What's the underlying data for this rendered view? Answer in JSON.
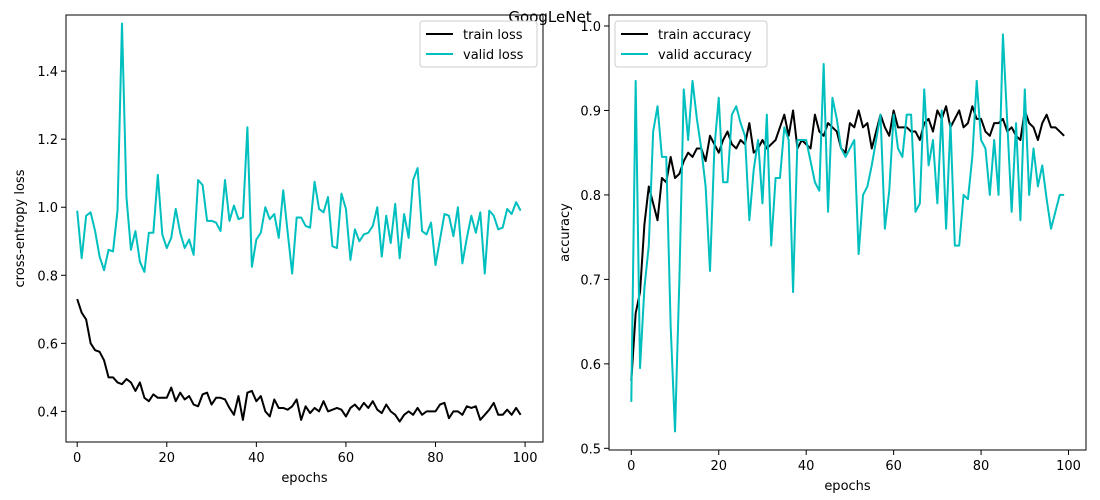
{
  "figure": {
    "title": "GoogLeNet"
  },
  "colors": {
    "train": "#000000",
    "valid": "#00bfbf"
  },
  "chart_data": [
    {
      "type": "line",
      "xlabel": "epochs",
      "ylabel": "cross-entropy loss",
      "xlim": [
        -2.5,
        104
      ],
      "ylim": [
        0.31,
        1.565
      ],
      "xticks": [
        0,
        20,
        40,
        60,
        80,
        100
      ],
      "yticks": [
        0.4,
        0.6,
        0.8,
        1.0,
        1.2,
        1.4
      ],
      "legend": "top-right",
      "series": [
        {
          "name": "train loss",
          "color": "#000000",
          "x": [
            0,
            1,
            2,
            3,
            4,
            5,
            6,
            7,
            8,
            9,
            10,
            11,
            12,
            13,
            14,
            15,
            16,
            17,
            18,
            19,
            20,
            21,
            22,
            23,
            24,
            25,
            26,
            27,
            28,
            29,
            30,
            31,
            32,
            33,
            34,
            35,
            36,
            37,
            38,
            39,
            40,
            41,
            42,
            43,
            44,
            45,
            46,
            47,
            48,
            49,
            50,
            51,
            52,
            53,
            54,
            55,
            56,
            57,
            58,
            59,
            60,
            61,
            62,
            63,
            64,
            65,
            66,
            67,
            68,
            69,
            70,
            71,
            72,
            73,
            74,
            75,
            76,
            77,
            78,
            79,
            80,
            81,
            82,
            83,
            84,
            85,
            86,
            87,
            88,
            89,
            90,
            91,
            92,
            93,
            94,
            95,
            96,
            97,
            98,
            99
          ],
          "values": [
            0.73,
            0.69,
            0.67,
            0.6,
            0.58,
            0.575,
            0.55,
            0.5,
            0.5,
            0.485,
            0.48,
            0.495,
            0.485,
            0.46,
            0.485,
            0.44,
            0.43,
            0.45,
            0.44,
            0.44,
            0.44,
            0.47,
            0.43,
            0.455,
            0.435,
            0.445,
            0.42,
            0.415,
            0.45,
            0.455,
            0.42,
            0.44,
            0.44,
            0.435,
            0.41,
            0.39,
            0.445,
            0.375,
            0.455,
            0.46,
            0.43,
            0.445,
            0.4,
            0.385,
            0.435,
            0.41,
            0.41,
            0.405,
            0.415,
            0.435,
            0.375,
            0.415,
            0.395,
            0.41,
            0.4,
            0.43,
            0.4,
            0.405,
            0.41,
            0.405,
            0.385,
            0.41,
            0.42,
            0.405,
            0.425,
            0.41,
            0.43,
            0.405,
            0.395,
            0.42,
            0.4,
            0.39,
            0.37,
            0.39,
            0.4,
            0.39,
            0.41,
            0.39,
            0.4,
            0.4,
            0.4,
            0.42,
            0.425,
            0.38,
            0.4,
            0.4,
            0.39,
            0.415,
            0.41,
            0.415,
            0.375,
            0.39,
            0.405,
            0.425,
            0.39,
            0.39,
            0.405,
            0.39,
            0.41,
            0.39
          ]
        },
        {
          "name": "valid loss",
          "color": "#00bfbf",
          "x": [
            0,
            1,
            2,
            3,
            4,
            5,
            6,
            7,
            8,
            9,
            10,
            11,
            12,
            13,
            14,
            15,
            16,
            17,
            18,
            19,
            20,
            21,
            22,
            23,
            24,
            25,
            26,
            27,
            28,
            29,
            30,
            31,
            32,
            33,
            34,
            35,
            36,
            37,
            38,
            39,
            40,
            41,
            42,
            43,
            44,
            45,
            46,
            47,
            48,
            49,
            50,
            51,
            52,
            53,
            54,
            55,
            56,
            57,
            58,
            59,
            60,
            61,
            62,
            63,
            64,
            65,
            66,
            67,
            68,
            69,
            70,
            71,
            72,
            73,
            74,
            75,
            76,
            77,
            78,
            79,
            80,
            81,
            82,
            83,
            84,
            85,
            86,
            87,
            88,
            89,
            90,
            91,
            92,
            93,
            94,
            95,
            96,
            97,
            98,
            99
          ],
          "values": [
            0.99,
            0.85,
            0.975,
            0.985,
            0.93,
            0.855,
            0.815,
            0.875,
            0.87,
            0.99,
            1.54,
            1.03,
            0.875,
            0.93,
            0.84,
            0.81,
            0.925,
            0.925,
            1.095,
            0.92,
            0.88,
            0.91,
            0.995,
            0.925,
            0.88,
            0.905,
            0.86,
            1.08,
            1.065,
            0.96,
            0.96,
            0.955,
            0.93,
            1.08,
            0.96,
            1.005,
            0.965,
            0.97,
            1.235,
            0.825,
            0.905,
            0.925,
            1.0,
            0.965,
            0.98,
            0.91,
            1.05,
            0.925,
            0.805,
            0.97,
            0.97,
            0.945,
            0.94,
            1.075,
            0.995,
            0.985,
            1.03,
            0.885,
            0.88,
            1.04,
            0.995,
            0.845,
            0.935,
            0.9,
            0.92,
            0.925,
            0.945,
            1.0,
            0.855,
            0.975,
            0.895,
            1.01,
            0.85,
            0.98,
            0.91,
            1.08,
            1.115,
            0.93,
            0.92,
            0.955,
            0.83,
            0.905,
            0.98,
            0.975,
            0.915,
            1.0,
            0.835,
            0.91,
            0.975,
            0.925,
            0.985,
            0.805,
            0.99,
            0.975,
            0.935,
            0.94,
            0.995,
            0.98,
            1.015,
            0.99
          ]
        }
      ]
    },
    {
      "type": "line",
      "xlabel": "epochs",
      "ylabel": "accuracy",
      "xlim": [
        -5.1,
        104
      ],
      "ylim": [
        0.498,
        1.013
      ],
      "xticks": [
        0,
        20,
        40,
        60,
        80,
        100
      ],
      "yticks": [
        0.5,
        0.6,
        0.7,
        0.8,
        0.9,
        1.0
      ],
      "legend": "top-left",
      "series": [
        {
          "name": "train accuracy",
          "color": "#000000",
          "x": [
            0,
            1,
            2,
            3,
            4,
            5,
            6,
            7,
            8,
            9,
            10,
            11,
            12,
            13,
            14,
            15,
            16,
            17,
            18,
            19,
            20,
            21,
            22,
            23,
            24,
            25,
            26,
            27,
            28,
            29,
            30,
            31,
            32,
            33,
            34,
            35,
            36,
            37,
            38,
            39,
            40,
            41,
            42,
            43,
            44,
            45,
            46,
            47,
            48,
            49,
            50,
            51,
            52,
            53,
            54,
            55,
            56,
            57,
            58,
            59,
            60,
            61,
            62,
            63,
            64,
            65,
            66,
            67,
            68,
            69,
            70,
            71,
            72,
            73,
            74,
            75,
            76,
            77,
            78,
            79,
            80,
            81,
            82,
            83,
            84,
            85,
            86,
            87,
            88,
            89,
            90,
            91,
            92,
            93,
            94,
            95,
            96,
            97,
            98,
            99
          ],
          "values": [
            0.58,
            0.66,
            0.685,
            0.765,
            0.81,
            0.79,
            0.77,
            0.82,
            0.815,
            0.845,
            0.82,
            0.825,
            0.84,
            0.85,
            0.845,
            0.855,
            0.855,
            0.84,
            0.87,
            0.86,
            0.85,
            0.865,
            0.875,
            0.86,
            0.855,
            0.865,
            0.86,
            0.885,
            0.85,
            0.855,
            0.865,
            0.855,
            0.86,
            0.865,
            0.88,
            0.895,
            0.87,
            0.9,
            0.855,
            0.865,
            0.86,
            0.855,
            0.895,
            0.875,
            0.87,
            0.885,
            0.88,
            0.875,
            0.855,
            0.85,
            0.885,
            0.88,
            0.9,
            0.88,
            0.885,
            0.855,
            0.875,
            0.895,
            0.88,
            0.87,
            0.9,
            0.88,
            0.88,
            0.88,
            0.875,
            0.875,
            0.865,
            0.885,
            0.89,
            0.875,
            0.9,
            0.89,
            0.905,
            0.88,
            0.89,
            0.9,
            0.88,
            0.885,
            0.905,
            0.89,
            0.89,
            0.875,
            0.87,
            0.885,
            0.885,
            0.89,
            0.875,
            0.88,
            0.87,
            0.865,
            0.9,
            0.885,
            0.88,
            0.865,
            0.885,
            0.895,
            0.88,
            0.88,
            0.875,
            0.87
          ]
        },
        {
          "name": "valid accuracy",
          "color": "#00bfbf",
          "x": [
            0,
            1,
            2,
            3,
            4,
            5,
            6,
            7,
            8,
            9,
            10,
            11,
            12,
            13,
            14,
            15,
            16,
            17,
            18,
            19,
            20,
            21,
            22,
            23,
            24,
            25,
            26,
            27,
            28,
            29,
            30,
            31,
            32,
            33,
            34,
            35,
            36,
            37,
            38,
            39,
            40,
            41,
            42,
            43,
            44,
            45,
            46,
            47,
            48,
            49,
            50,
            51,
            52,
            53,
            54,
            55,
            56,
            57,
            58,
            59,
            60,
            61,
            62,
            63,
            64,
            65,
            66,
            67,
            68,
            69,
            70,
            71,
            72,
            73,
            74,
            75,
            76,
            77,
            78,
            79,
            80,
            81,
            82,
            83,
            84,
            85,
            86,
            87,
            88,
            89,
            90,
            91,
            92,
            93,
            94,
            95,
            96,
            97,
            98,
            99
          ],
          "values": [
            0.555,
            0.935,
            0.595,
            0.69,
            0.74,
            0.875,
            0.905,
            0.845,
            0.845,
            0.645,
            0.52,
            0.7,
            0.925,
            0.865,
            0.935,
            0.89,
            0.855,
            0.81,
            0.71,
            0.855,
            0.915,
            0.815,
            0.815,
            0.895,
            0.905,
            0.885,
            0.87,
            0.77,
            0.83,
            0.865,
            0.79,
            0.895,
            0.74,
            0.82,
            0.82,
            0.88,
            0.865,
            0.685,
            0.865,
            0.865,
            0.865,
            0.84,
            0.815,
            0.805,
            0.955,
            0.78,
            0.915,
            0.89,
            0.855,
            0.845,
            0.855,
            0.865,
            0.73,
            0.8,
            0.81,
            0.835,
            0.865,
            0.895,
            0.76,
            0.805,
            0.895,
            0.855,
            0.845,
            0.895,
            0.895,
            0.78,
            0.79,
            0.925,
            0.835,
            0.865,
            0.79,
            0.9,
            0.76,
            0.885,
            0.74,
            0.74,
            0.8,
            0.795,
            0.845,
            0.935,
            0.865,
            0.855,
            0.8,
            0.865,
            0.8,
            0.99,
            0.885,
            0.78,
            0.885,
            0.77,
            0.925,
            0.8,
            0.855,
            0.81,
            0.835,
            0.795,
            0.76,
            0.78,
            0.8,
            0.8
          ]
        }
      ]
    }
  ]
}
